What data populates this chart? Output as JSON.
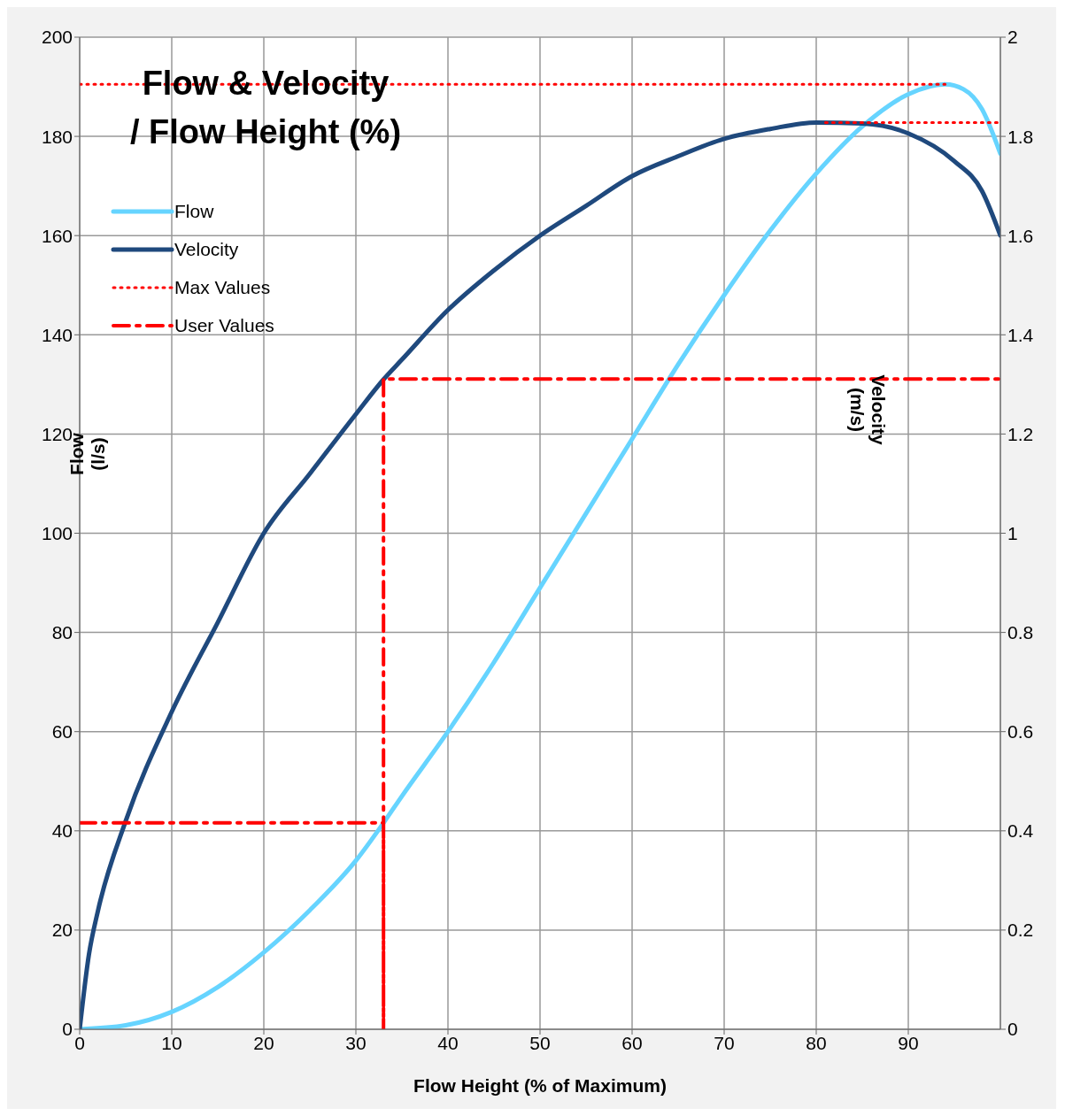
{
  "chart_data": {
    "type": "line",
    "title": "Flow & Velocity\n/ Flow Height (%)",
    "xlabel": "Flow Height (% of Maximum)",
    "ylabel": "Flow\n(l/s)",
    "y2label": "Velocity\n(m/s)",
    "xlim": [
      0,
      100
    ],
    "xticks": [
      0,
      10,
      20,
      30,
      40,
      50,
      60,
      70,
      80,
      90
    ],
    "ylim": [
      0,
      200
    ],
    "yticks": [
      0,
      20,
      40,
      60,
      80,
      100,
      120,
      140,
      160,
      180,
      200
    ],
    "y2lim": [
      0,
      2
    ],
    "y2ticks": [
      0,
      0.2,
      0.4,
      0.6,
      0.8,
      1,
      1.2,
      1.4,
      1.6,
      1.8,
      2
    ],
    "grid": true,
    "legend": "top left",
    "series": [
      {
        "name": "Flow",
        "color": "#66d4ff",
        "x": [
          0,
          5,
          10,
          15,
          20,
          25,
          30,
          33,
          35,
          40,
          45,
          50,
          55,
          60,
          65,
          70,
          75,
          80,
          85,
          90,
          94,
          96,
          98,
          100
        ],
        "values": [
          0,
          0.8,
          3.5,
          8.5,
          15.5,
          24,
          34,
          41.6,
          47,
          60,
          74,
          89,
          104,
          119,
          134,
          148,
          161,
          172.5,
          182,
          188.5,
          190.5,
          189.5,
          185.5,
          176.5
        ]
      },
      {
        "name": "Velocity",
        "color": "#1f497d",
        "axis": "y2",
        "x": [
          0,
          1,
          2,
          5,
          10,
          15,
          20,
          25,
          30,
          33,
          35,
          40,
          45,
          50,
          55,
          60,
          65,
          70,
          75,
          80,
          85,
          90,
          95,
          98,
          100
        ],
        "values": [
          0,
          0.15,
          0.24,
          0.42,
          0.64,
          0.82,
          1.0,
          1.12,
          1.24,
          1.31,
          1.35,
          1.45,
          1.53,
          1.6,
          1.66,
          1.72,
          1.76,
          1.795,
          1.815,
          1.828,
          1.826,
          1.806,
          1.75,
          1.69,
          1.6
        ]
      },
      {
        "name": "Max Values",
        "color": "#ff0000",
        "line_style": "dotted",
        "x": [
          0,
          94
        ],
        "values": [
          190.5,
          190.5
        ]
      },
      {
        "color": "#ff0000",
        "line_style": "dotted",
        "axis": "y2",
        "x": [
          81,
          100
        ],
        "values": [
          1.828,
          1.828
        ]
      },
      {
        "name": "User Values",
        "color": "#ff0000",
        "line_style": "dashed",
        "x": [
          0,
          33,
          33,
          33,
          100
        ],
        "values": [
          41.6,
          41.6,
          0,
          131.1,
          131.1
        ]
      }
    ]
  }
}
